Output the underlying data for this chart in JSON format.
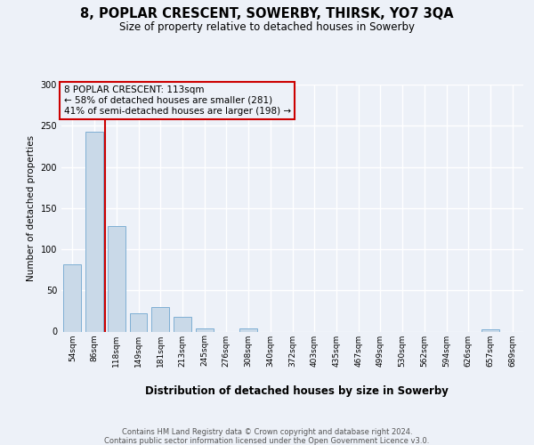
{
  "title": "8, POPLAR CRESCENT, SOWERBY, THIRSK, YO7 3QA",
  "subtitle": "Size of property relative to detached houses in Sowerby",
  "xlabel": "Distribution of detached houses by size in Sowerby",
  "ylabel": "Number of detached properties",
  "footer_line1": "Contains HM Land Registry data © Crown copyright and database right 2024.",
  "footer_line2": "Contains public sector information licensed under the Open Government Licence v3.0.",
  "annotation_line1": "8 POPLAR CRESCENT: 113sqm",
  "annotation_line2": "← 58% of detached houses are smaller (281)",
  "annotation_line3": "41% of semi-detached houses are larger (198) →",
  "categories": [
    "54sqm",
    "86sqm",
    "118sqm",
    "149sqm",
    "181sqm",
    "213sqm",
    "245sqm",
    "276sqm",
    "308sqm",
    "340sqm",
    "372sqm",
    "403sqm",
    "435sqm",
    "467sqm",
    "499sqm",
    "530sqm",
    "562sqm",
    "594sqm",
    "626sqm",
    "657sqm",
    "689sqm"
  ],
  "values": [
    82,
    243,
    128,
    22,
    30,
    18,
    4,
    0,
    4,
    0,
    0,
    0,
    0,
    0,
    0,
    0,
    0,
    0,
    0,
    3,
    0
  ],
  "bar_color": "#c9d9e8",
  "bar_edge_color": "#7fafd4",
  "property_line_color": "#cc0000",
  "annotation_box_color": "#cc0000",
  "background_color": "#edf1f8",
  "grid_color": "#ffffff",
  "ylim_max": 300,
  "yticks": [
    0,
    50,
    100,
    150,
    200,
    250,
    300
  ],
  "property_line_xidx": 1.5,
  "title_fontsize": 10.5,
  "subtitle_fontsize": 8.5,
  "ylabel_fontsize": 7.5,
  "xlabel_fontsize": 8.5,
  "tick_fontsize": 6.5,
  "ann_fontsize": 7.5,
  "footer_fontsize": 6.0
}
